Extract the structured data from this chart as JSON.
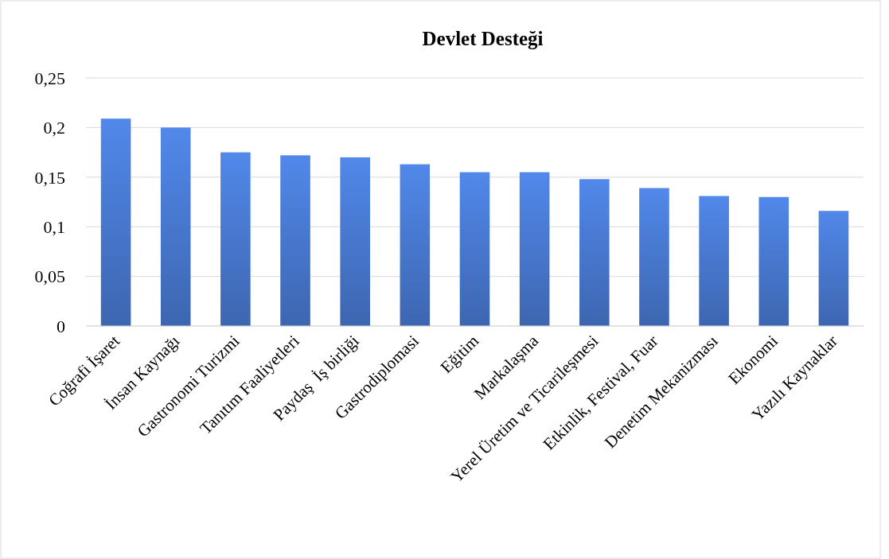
{
  "chart_data": {
    "type": "bar",
    "title": "Devlet Desteği",
    "categories": [
      "Coğrafi İşaret",
      "İnsan Kaynağı",
      "Gastronomi Turizmi",
      "Tanıtım Faaliyetleri",
      "Paydaş  İş birliği",
      "Gastrodiplomasi",
      "Eğitim",
      "Markalaşma",
      "Yerel Üretim ve Ticarileşmesi",
      "Etkinlik, Festival, Fuar",
      "Denetim Mekanizması",
      "Ekonomi",
      "Yazılı Kaynaklar"
    ],
    "values": [
      0.209,
      0.2,
      0.175,
      0.172,
      0.17,
      0.163,
      0.155,
      0.155,
      0.148,
      0.139,
      0.131,
      0.13,
      0.116
    ],
    "color": "#4472c4",
    "ylim": [
      0,
      0.25
    ],
    "yticks": [
      {
        "value": 0,
        "label": "0"
      },
      {
        "value": 0.05,
        "label": "0,05"
      },
      {
        "value": 0.1,
        "label": "0,1"
      },
      {
        "value": 0.15,
        "label": "0,15"
      },
      {
        "value": 0.2,
        "label": "0,2"
      },
      {
        "value": 0.25,
        "label": "0,25"
      }
    ],
    "grid": "y"
  }
}
